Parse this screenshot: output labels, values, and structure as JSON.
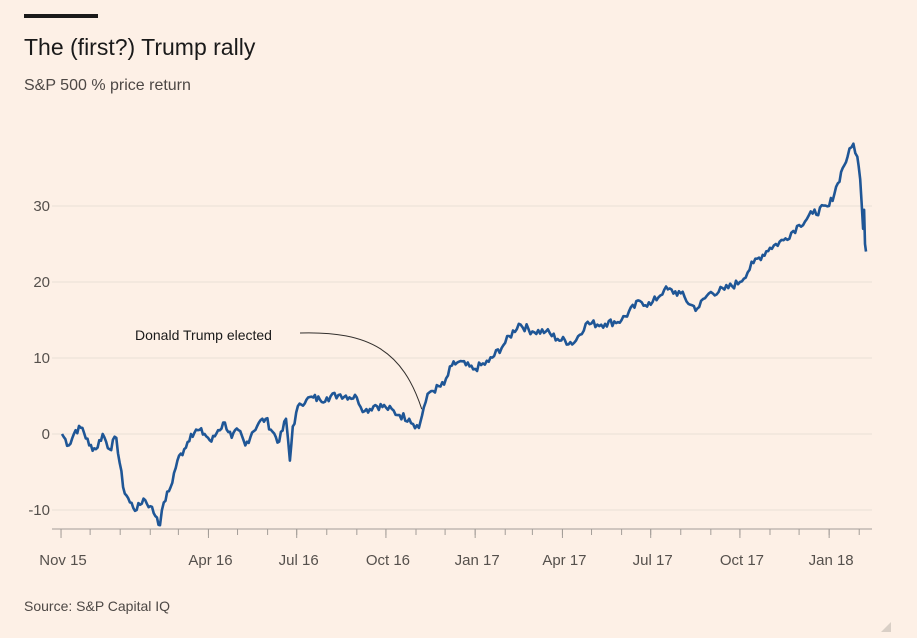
{
  "title": "The (first?) Trump rally",
  "subtitle": "S&P 500 % price return",
  "source": "Source: S&P Capital IQ",
  "chart_data": {
    "type": "line",
    "title": "The (first?) Trump rally",
    "subtitle": "S&P 500 % price return",
    "xlabel": "",
    "ylabel": "",
    "x_start": "2015-11-02",
    "x_end": "2018-02-08",
    "ylim": [
      -12.5,
      40
    ],
    "yticks": [
      -10,
      0,
      10,
      20,
      30
    ],
    "ytick_labels": [
      "-10",
      "0",
      "10",
      "20",
      "30"
    ],
    "xtick_labels": [
      "Nov 15",
      "Apr 16",
      "Jul 16",
      "Oct 16",
      "Jan 17",
      "Apr 17",
      "Jul 17",
      "Oct 17",
      "Jan 18"
    ],
    "xtick_dates": [
      "2015-11-01",
      "2016-04-01",
      "2016-07-01",
      "2016-10-01",
      "2017-01-01",
      "2017-04-01",
      "2017-07-01",
      "2017-10-01",
      "2018-01-01"
    ],
    "grid": "horizontal",
    "line_color": "#1f5696",
    "series": [
      {
        "x": [
          "2015-11-02",
          "2015-11-09",
          "2015-11-16",
          "2015-11-23",
          "2015-11-30",
          "2015-12-07",
          "2015-12-14",
          "2015-12-21",
          "2015-12-28",
          "2016-01-04",
          "2016-01-11",
          "2016-01-18",
          "2016-01-25",
          "2016-02-01",
          "2016-02-08",
          "2016-02-11",
          "2016-02-15",
          "2016-02-22",
          "2016-02-29",
          "2016-03-07",
          "2016-03-14",
          "2016-03-21",
          "2016-03-28",
          "2016-04-04",
          "2016-04-11",
          "2016-04-18",
          "2016-04-25",
          "2016-05-02",
          "2016-05-09",
          "2016-05-16",
          "2016-05-23",
          "2016-05-30",
          "2016-06-06",
          "2016-06-13",
          "2016-06-20",
          "2016-06-24",
          "2016-06-27",
          "2016-07-04",
          "2016-07-11",
          "2016-07-18",
          "2016-07-25",
          "2016-08-01",
          "2016-08-15",
          "2016-09-01",
          "2016-09-09",
          "2016-09-20",
          "2016-10-01",
          "2016-10-15",
          "2016-10-25",
          "2016-11-04",
          "2016-11-09",
          "2016-11-15",
          "2016-11-30",
          "2016-12-08",
          "2016-12-15",
          "2016-12-30",
          "2017-01-15",
          "2017-02-01",
          "2017-02-15",
          "2017-03-01",
          "2017-03-15",
          "2017-03-27",
          "2017-04-13",
          "2017-04-25",
          "2017-05-15",
          "2017-06-01",
          "2017-06-20",
          "2017-07-01",
          "2017-07-15",
          "2017-08-01",
          "2017-08-11",
          "2017-08-18",
          "2017-08-30",
          "2017-09-15",
          "2017-10-01",
          "2017-10-15",
          "2017-11-01",
          "2017-11-15",
          "2017-12-01",
          "2017-12-15",
          "2018-01-01",
          "2018-01-10",
          "2018-01-15",
          "2018-01-20",
          "2018-01-26",
          "2018-01-30",
          "2018-02-02",
          "2018-02-05",
          "2018-02-06",
          "2018-02-07",
          "2018-02-08"
        ],
        "values": [
          0,
          -1.5,
          0.5,
          0.8,
          -1.5,
          -2,
          0,
          -2,
          -0.5,
          -7,
          -9,
          -10,
          -8.5,
          -9.5,
          -11,
          -12,
          -9,
          -7,
          -3.5,
          -2,
          0,
          0.5,
          0,
          -1,
          0.5,
          1.5,
          -0.5,
          0.5,
          -1.5,
          0.2,
          1.5,
          2,
          0.3,
          -1,
          2,
          -3.5,
          1,
          4,
          4.5,
          4.8,
          4.5,
          4.8,
          5.2,
          4.8,
          3,
          3.8,
          3.5,
          2.5,
          2,
          0.8,
          3.5,
          5.5,
          6.5,
          9,
          9.5,
          8.5,
          9.5,
          12,
          14.5,
          13.5,
          13.5,
          12.5,
          12,
          14.5,
          14.5,
          15,
          17.5,
          17,
          19,
          18.5,
          17,
          16.5,
          18.5,
          19,
          20,
          22.5,
          24.5,
          25.5,
          27.5,
          29,
          30,
          33,
          35,
          36.5,
          38.2,
          36.5,
          33.5,
          27,
          29.5,
          25,
          24
        ]
      }
    ],
    "annotations": [
      {
        "text": "Donald Trump elected",
        "x": "2016-11-08",
        "y": 3
      }
    ]
  }
}
